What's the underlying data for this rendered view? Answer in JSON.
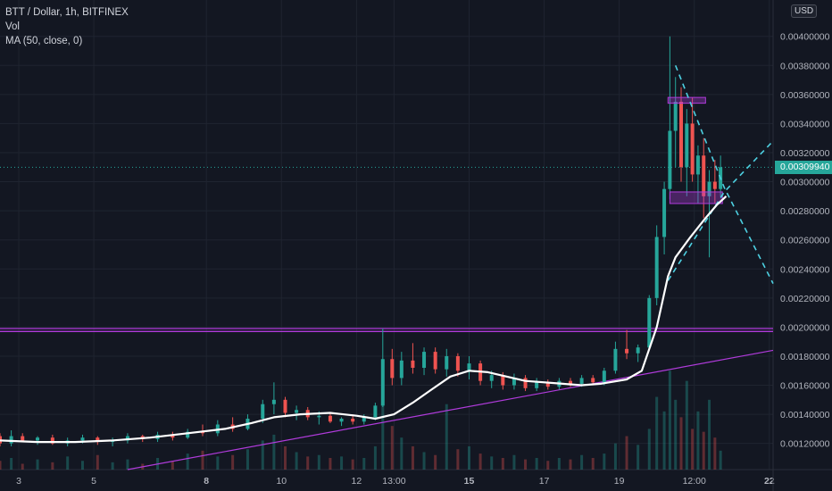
{
  "legend": {
    "symbol": "BTT / Dollar, 1h, BITFINEX",
    "volume": "Vol",
    "ma": "MA (50, close, 0)"
  },
  "currency": "USD",
  "colors": {
    "background": "#131722",
    "up": "#26a69a",
    "down": "#ef5350",
    "ma": "#ffffff",
    "drawing_purple": "#b03bdb",
    "drawing_cyan": "#4dd0e1",
    "price_line": "#26a69a"
  },
  "chart_data": {
    "type": "candlestick",
    "y_axis": {
      "ticks": [
        "0.00120000",
        "0.00140000",
        "0.00160000",
        "0.00180000",
        "0.00200000",
        "0.00220000",
        "0.00240000",
        "0.00260000",
        "0.00280000",
        "0.00300000",
        "0.00320000",
        "0.00340000",
        "0.00360000",
        "0.00380000",
        "0.00400000"
      ],
      "range": [
        0.00102,
        0.00425
      ]
    },
    "x_axis": {
      "ticks": [
        "3",
        "5",
        "8",
        "10",
        "12",
        "13:00",
        "15",
        "17",
        "19",
        "12:00",
        "22"
      ],
      "range_index": [
        0,
        20.6
      ],
      "tick_index": [
        0.5,
        2.5,
        5.5,
        7.5,
        9.5,
        10.5,
        12.5,
        14.5,
        16.5,
        18.5,
        20.5
      ]
    },
    "last_price": "0.00309940",
    "last_price_value": 0.0030994,
    "series": [
      {
        "kind": "ma",
        "points": [
          [
            0,
            0.00122
          ],
          [
            1,
            0.00121
          ],
          [
            2,
            0.00121
          ],
          [
            3,
            0.00122
          ],
          [
            4,
            0.00124
          ],
          [
            5,
            0.00127
          ],
          [
            6,
            0.0013
          ],
          [
            6.7,
            0.00134
          ],
          [
            7.3,
            0.00138
          ],
          [
            8,
            0.0014
          ],
          [
            8.8,
            0.00141
          ],
          [
            9.5,
            0.00139
          ],
          [
            10,
            0.00137
          ],
          [
            10.5,
            0.0014
          ],
          [
            11,
            0.00148
          ],
          [
            11.5,
            0.00157
          ],
          [
            12,
            0.00166
          ],
          [
            12.5,
            0.0017
          ],
          [
            13,
            0.00169
          ],
          [
            13.5,
            0.00166
          ],
          [
            14,
            0.00163
          ],
          [
            15,
            0.00161
          ],
          [
            15.5,
            0.0016
          ],
          [
            16,
            0.00161
          ],
          [
            16.7,
            0.00164
          ],
          [
            17.1,
            0.0017
          ],
          [
            17.5,
            0.002
          ],
          [
            17.8,
            0.00235
          ],
          [
            18,
            0.00248
          ],
          [
            18.4,
            0.00262
          ],
          [
            18.8,
            0.00275
          ],
          [
            19.1,
            0.00284
          ],
          [
            19.35,
            0.0029
          ]
        ]
      }
    ],
    "drawings": {
      "horizontal_lines": [
        0.00197,
        0.00199
      ],
      "trendline_purple": [
        [
          3.4,
          0.00102
        ],
        [
          20.6,
          0.00184
        ]
      ],
      "cyan_upper": [
        [
          18.0,
          0.0038
        ],
        [
          19.3,
          0.00296
        ],
        [
          20.6,
          0.0023
        ]
      ],
      "cyan_lower": [
        [
          17.8,
          0.00232
        ],
        [
          19.3,
          0.00293
        ],
        [
          20.6,
          0.00328
        ]
      ],
      "boxes": [
        {
          "x": [
            17.8,
            18.8
          ],
          "y": [
            0.00354,
            0.00358
          ]
        },
        {
          "x": [
            17.85,
            19.25
          ],
          "y": [
            0.00285,
            0.00293
          ]
        }
      ]
    },
    "candles": [
      [
        0.0,
        0.00125,
        0.00127,
        0.00118,
        0.0012
      ],
      [
        0.3,
        0.0012,
        0.00129,
        0.00118,
        0.00125
      ],
      [
        0.6,
        0.00125,
        0.00127,
        0.00121,
        0.00122
      ],
      [
        1.0,
        0.00122,
        0.00125,
        0.00119,
        0.00124
      ],
      [
        1.4,
        0.00124,
        0.00126,
        0.00119,
        0.0012
      ],
      [
        1.8,
        0.0012,
        0.00124,
        0.00118,
        0.00122
      ],
      [
        2.2,
        0.00122,
        0.00126,
        0.0012,
        0.00124
      ],
      [
        2.6,
        0.00124,
        0.00125,
        0.00119,
        0.00121
      ],
      [
        3.0,
        0.00121,
        0.00124,
        0.00118,
        0.00122
      ],
      [
        3.4,
        0.00122,
        0.00127,
        0.0012,
        0.00125
      ],
      [
        3.8,
        0.00125,
        0.00126,
        0.00121,
        0.00123
      ],
      [
        4.2,
        0.00123,
        0.00128,
        0.00121,
        0.00126
      ],
      [
        4.6,
        0.00126,
        0.00128,
        0.00122,
        0.00124
      ],
      [
        5.0,
        0.00124,
        0.0013,
        0.00123,
        0.00128
      ],
      [
        5.4,
        0.00128,
        0.00133,
        0.00125,
        0.00127
      ],
      [
        5.8,
        0.00127,
        0.00136,
        0.00125,
        0.00133
      ],
      [
        6.2,
        0.00133,
        0.00138,
        0.00128,
        0.0013
      ],
      [
        6.6,
        0.0013,
        0.0014,
        0.00129,
        0.00137
      ],
      [
        7.0,
        0.00137,
        0.0015,
        0.00134,
        0.00147
      ],
      [
        7.3,
        0.00147,
        0.00162,
        0.0014,
        0.0015
      ],
      [
        7.6,
        0.0015,
        0.00152,
        0.00138,
        0.00141
      ],
      [
        7.9,
        0.00141,
        0.00146,
        0.00136,
        0.00143
      ],
      [
        8.2,
        0.00143,
        0.00145,
        0.00136,
        0.00138
      ],
      [
        8.5,
        0.00138,
        0.00142,
        0.00133,
        0.00139
      ],
      [
        8.8,
        0.00139,
        0.00141,
        0.00134,
        0.00135
      ],
      [
        9.1,
        0.00135,
        0.00138,
        0.00132,
        0.00137
      ],
      [
        9.4,
        0.00137,
        0.0014,
        0.00133,
        0.00135
      ],
      [
        9.7,
        0.00135,
        0.0014,
        0.00133,
        0.00138
      ],
      [
        10.0,
        0.00138,
        0.00148,
        0.00136,
        0.00146
      ],
      [
        10.2,
        0.00146,
        0.00199,
        0.00145,
        0.00178
      ],
      [
        10.45,
        0.00178,
        0.00185,
        0.0016,
        0.00165
      ],
      [
        10.7,
        0.00165,
        0.00183,
        0.0016,
        0.00177
      ],
      [
        11.0,
        0.00177,
        0.00189,
        0.00168,
        0.00172
      ],
      [
        11.3,
        0.00172,
        0.00186,
        0.00167,
        0.00183
      ],
      [
        11.6,
        0.00183,
        0.00186,
        0.00168,
        0.00171
      ],
      [
        11.9,
        0.00171,
        0.00185,
        0.00166,
        0.0018
      ],
      [
        12.2,
        0.0018,
        0.00182,
        0.00166,
        0.0017
      ],
      [
        12.5,
        0.0017,
        0.0018,
        0.00164,
        0.00175
      ],
      [
        12.8,
        0.00175,
        0.00177,
        0.0016,
        0.00163
      ],
      [
        13.1,
        0.00163,
        0.0017,
        0.00158,
        0.00167
      ],
      [
        13.4,
        0.00167,
        0.00169,
        0.00157,
        0.0016
      ],
      [
        13.7,
        0.0016,
        0.00168,
        0.00157,
        0.00165
      ],
      [
        14.0,
        0.00165,
        0.00167,
        0.00156,
        0.00158
      ],
      [
        14.3,
        0.00158,
        0.00165,
        0.00156,
        0.00162
      ],
      [
        14.6,
        0.00162,
        0.00164,
        0.00157,
        0.00159
      ],
      [
        14.9,
        0.00159,
        0.00165,
        0.00157,
        0.00163
      ],
      [
        15.2,
        0.00163,
        0.00165,
        0.00159,
        0.00161
      ],
      [
        15.5,
        0.00161,
        0.00167,
        0.00159,
        0.00165
      ],
      [
        15.8,
        0.00165,
        0.00167,
        0.0016,
        0.00162
      ],
      [
        16.1,
        0.00162,
        0.00172,
        0.0016,
        0.0017
      ],
      [
        16.4,
        0.0017,
        0.0019,
        0.00168,
        0.00185
      ],
      [
        16.7,
        0.00185,
        0.00198,
        0.00178,
        0.00182
      ],
      [
        17.0,
        0.00182,
        0.00188,
        0.00176,
        0.00186
      ],
      [
        17.3,
        0.00186,
        0.00222,
        0.00184,
        0.0022
      ],
      [
        17.5,
        0.0022,
        0.0027,
        0.00215,
        0.00262
      ],
      [
        17.7,
        0.00262,
        0.003,
        0.0025,
        0.00295
      ],
      [
        17.85,
        0.00295,
        0.004,
        0.00288,
        0.00335
      ],
      [
        18.0,
        0.00335,
        0.00372,
        0.0031,
        0.00355
      ],
      [
        18.15,
        0.00355,
        0.00365,
        0.003,
        0.0031
      ],
      [
        18.3,
        0.0031,
        0.0035,
        0.0029,
        0.0034
      ],
      [
        18.45,
        0.0034,
        0.00358,
        0.003,
        0.00305
      ],
      [
        18.6,
        0.00305,
        0.00325,
        0.00285,
        0.00318
      ],
      [
        18.75,
        0.00318,
        0.0033,
        0.00275,
        0.0029
      ],
      [
        18.9,
        0.0029,
        0.00308,
        0.00248,
        0.003
      ],
      [
        19.05,
        0.003,
        0.00315,
        0.00285,
        0.00295
      ],
      [
        19.2,
        0.00295,
        0.00318,
        0.0029,
        0.0031
      ]
    ],
    "volumes": [
      [
        0.0,
        0.00108
      ],
      [
        0.3,
        0.0011
      ],
      [
        0.6,
        0.00106
      ],
      [
        1.0,
        0.00109
      ],
      [
        1.4,
        0.00107
      ],
      [
        1.8,
        0.00111
      ],
      [
        2.2,
        0.00108
      ],
      [
        2.6,
        0.00112
      ],
      [
        3.0,
        0.00107
      ],
      [
        3.4,
        0.00109
      ],
      [
        3.8,
        0.00106
      ],
      [
        4.2,
        0.0011
      ],
      [
        4.6,
        0.00108
      ],
      [
        5.0,
        0.00113
      ],
      [
        5.4,
        0.00115
      ],
      [
        5.8,
        0.00111
      ],
      [
        6.2,
        0.00112
      ],
      [
        6.6,
        0.00116
      ],
      [
        7.0,
        0.00122
      ],
      [
        7.3,
        0.00126
      ],
      [
        7.6,
        0.00118
      ],
      [
        7.9,
        0.00114
      ],
      [
        8.2,
        0.00111
      ],
      [
        8.5,
        0.00112
      ],
      [
        8.8,
        0.0011
      ],
      [
        9.1,
        0.00111
      ],
      [
        9.4,
        0.00109
      ],
      [
        9.7,
        0.0011
      ],
      [
        10.0,
        0.00118
      ],
      [
        10.2,
        0.0016
      ],
      [
        10.45,
        0.00132
      ],
      [
        10.7,
        0.00124
      ],
      [
        11.0,
        0.00118
      ],
      [
        11.3,
        0.00114
      ],
      [
        11.6,
        0.00112
      ],
      [
        11.9,
        0.00147
      ],
      [
        12.2,
        0.00116
      ],
      [
        12.5,
        0.00118
      ],
      [
        12.8,
        0.00113
      ],
      [
        13.1,
        0.00111
      ],
      [
        13.4,
        0.0011
      ],
      [
        13.7,
        0.00112
      ],
      [
        14.0,
        0.00109
      ],
      [
        14.3,
        0.0011
      ],
      [
        14.6,
        0.00108
      ],
      [
        14.9,
        0.0011
      ],
      [
        15.2,
        0.00109
      ],
      [
        15.5,
        0.00112
      ],
      [
        15.8,
        0.0011
      ],
      [
        16.1,
        0.00113
      ],
      [
        16.4,
        0.0012
      ],
      [
        16.7,
        0.00125
      ],
      [
        17.0,
        0.00119
      ],
      [
        17.3,
        0.0013
      ],
      [
        17.5,
        0.00152
      ],
      [
        17.7,
        0.00142
      ],
      [
        17.85,
        0.0017
      ],
      [
        18.0,
        0.0015
      ],
      [
        18.15,
        0.00138
      ],
      [
        18.3,
        0.00163
      ],
      [
        18.45,
        0.0013
      ],
      [
        18.6,
        0.00142
      ],
      [
        18.75,
        0.00128
      ],
      [
        18.9,
        0.0015
      ],
      [
        19.05,
        0.00124
      ],
      [
        19.2,
        0.00115
      ]
    ]
  }
}
